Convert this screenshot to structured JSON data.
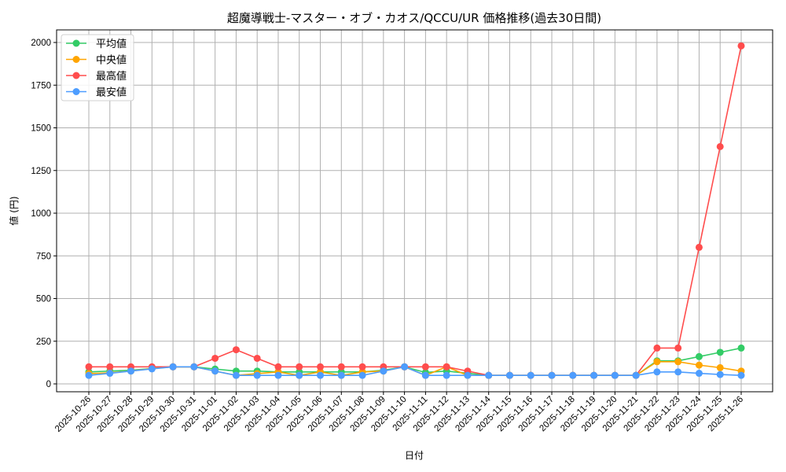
{
  "chart_data": {
    "type": "line",
    "title": "超魔導戦士-マスター・オブ・カオス/QCCU/UR 価格推移(過去30日間)",
    "xlabel": "日付",
    "ylabel": "値 (円)",
    "ylim": [
      -75,
      2075
    ],
    "yticks": [
      0,
      250,
      500,
      750,
      1000,
      1250,
      1500,
      1750,
      2000
    ],
    "grid": true,
    "legend_position": "upper left",
    "categories": [
      "2025-10-26",
      "2025-10-27",
      "2025-10-28",
      "2025-10-29",
      "2025-10-30",
      "2025-10-31",
      "2025-11-01",
      "2025-11-02",
      "2025-11-03",
      "2025-11-04",
      "2025-11-05",
      "2025-11-06",
      "2025-11-07",
      "2025-11-08",
      "2025-11-09",
      "2025-11-10",
      "2025-11-11",
      "2025-11-12",
      "2025-11-13",
      "2025-11-14",
      "2025-11-15",
      "2025-11-16",
      "2025-11-17",
      "2025-11-18",
      "2025-11-19",
      "2025-11-20",
      "2025-11-21",
      "2025-11-22",
      "2025-11-23",
      "2025-11-24",
      "2025-11-25",
      "2025-11-26"
    ],
    "series": [
      {
        "name": "平均値",
        "color": "#33cc66",
        "values": [
          70,
          75,
          80,
          90,
          100,
          100,
          87,
          75,
          75,
          70,
          70,
          70,
          70,
          70,
          80,
          100,
          67,
          75,
          62,
          50,
          50,
          50,
          50,
          50,
          50,
          50,
          50,
          135,
          135,
          160,
          185,
          210
        ]
      },
      {
        "name": "中央値",
        "color": "#ffa500",
        "values": [
          60,
          65,
          75,
          90,
          100,
          100,
          75,
          50,
          60,
          70,
          50,
          70,
          50,
          70,
          75,
          100,
          50,
          100,
          50,
          50,
          50,
          50,
          50,
          50,
          50,
          50,
          50,
          130,
          130,
          110,
          95,
          75
        ]
      },
      {
        "name": "最高値",
        "color": "#ff4d4d",
        "values": [
          100,
          100,
          100,
          100,
          100,
          100,
          150,
          200,
          150,
          100,
          100,
          100,
          100,
          100,
          100,
          100,
          100,
          100,
          75,
          50,
          50,
          50,
          50,
          50,
          50,
          50,
          50,
          210,
          210,
          800,
          1390,
          1980
        ]
      },
      {
        "name": "最安値",
        "color": "#4d9dff",
        "values": [
          50,
          62,
          75,
          88,
          100,
          100,
          75,
          50,
          50,
          50,
          50,
          50,
          50,
          50,
          75,
          100,
          50,
          50,
          50,
          50,
          50,
          50,
          50,
          50,
          50,
          50,
          50,
          70,
          70,
          62,
          55,
          50
        ]
      }
    ]
  }
}
